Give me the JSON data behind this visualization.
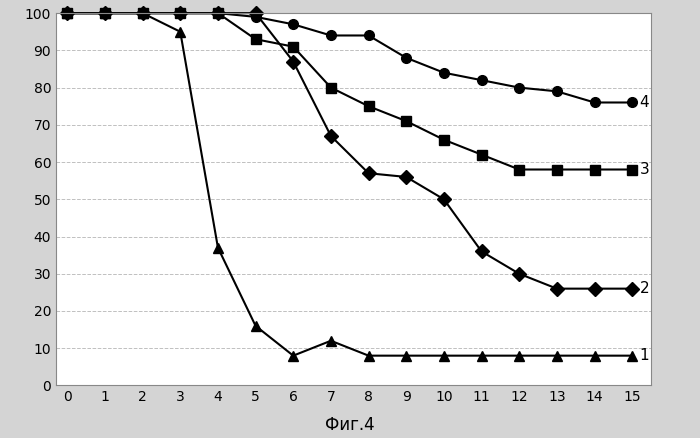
{
  "x": [
    0,
    1,
    2,
    3,
    4,
    5,
    6,
    7,
    8,
    9,
    10,
    11,
    12,
    13,
    14,
    15
  ],
  "series": [
    {
      "label": "1",
      "marker": "^",
      "color": "#000000",
      "values": [
        100,
        100,
        100,
        95,
        37,
        16,
        8,
        12,
        8,
        8,
        8,
        8,
        8,
        8,
        8,
        8
      ]
    },
    {
      "label": "2",
      "marker": "D",
      "color": "#000000",
      "values": [
        100,
        100,
        100,
        100,
        100,
        100,
        87,
        67,
        57,
        56,
        50,
        36,
        30,
        26,
        26,
        26
      ]
    },
    {
      "label": "3",
      "marker": "s",
      "color": "#000000",
      "values": [
        100,
        100,
        100,
        100,
        100,
        93,
        91,
        80,
        75,
        71,
        66,
        62,
        58,
        58,
        58,
        58
      ]
    },
    {
      "label": "4",
      "marker": "o",
      "color": "#000000",
      "values": [
        100,
        100,
        100,
        100,
        100,
        99,
        97,
        94,
        94,
        88,
        84,
        82,
        80,
        79,
        76,
        76
      ]
    }
  ],
  "caption": "Фиг.4",
  "xlim": [
    -0.3,
    15.5
  ],
  "ylim": [
    0,
    100
  ],
  "xticks": [
    0,
    1,
    2,
    3,
    4,
    5,
    6,
    7,
    8,
    9,
    10,
    11,
    12,
    13,
    14,
    15
  ],
  "yticks": [
    0,
    10,
    20,
    30,
    40,
    50,
    60,
    70,
    80,
    90,
    100
  ],
  "outer_bg": "#d4d4d4",
  "plot_bg": "#ffffff",
  "grid_color": "#b0b0b0",
  "label_fontsize": 11,
  "tick_fontsize": 10,
  "caption_fontsize": 12,
  "markersize": 7,
  "linewidth": 1.5
}
